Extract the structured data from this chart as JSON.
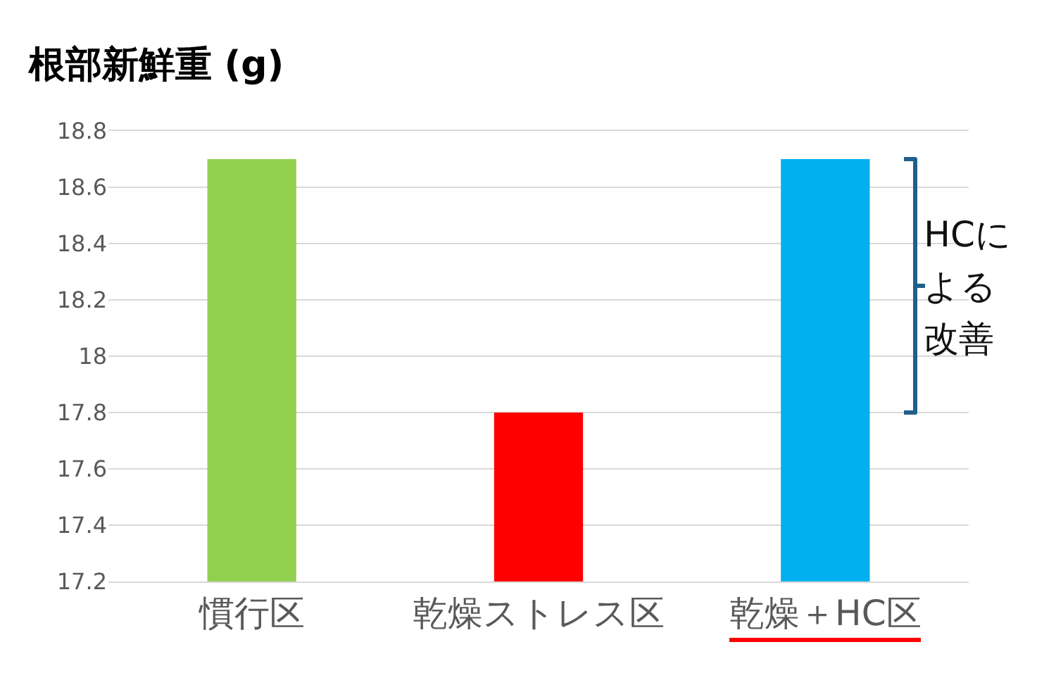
{
  "chart_data": {
    "type": "bar",
    "title": "根部新鮮重 (g)",
    "categories": [
      "慣行区",
      "乾燥ストレス区",
      "乾燥＋HC区"
    ],
    "values": [
      18.7,
      17.8,
      18.7
    ],
    "colors": [
      "#92d050",
      "#ff0000",
      "#00b0f0"
    ],
    "ylim": [
      17.2,
      18.8
    ],
    "yticks": [
      17.2,
      17.4,
      17.6,
      17.8,
      18,
      18.2,
      18.4,
      18.6,
      18.8
    ],
    "grid": "y",
    "annotations": [
      "HCによる改善"
    ]
  }
}
